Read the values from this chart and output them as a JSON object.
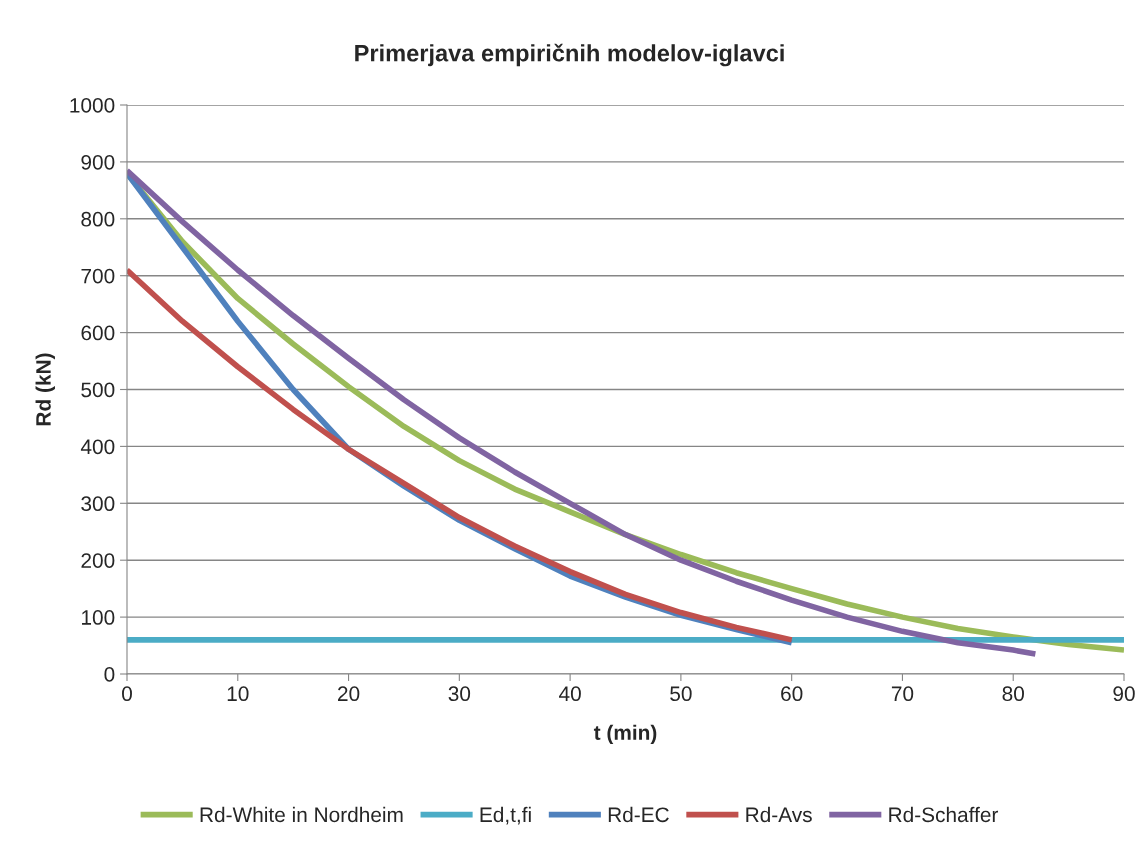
{
  "chart_data": {
    "type": "line",
    "title": "Primerjava empiričnih modelov-iglavci",
    "xlabel": "t (min)",
    "ylabel": "Rd (kN)",
    "xlim": [
      0,
      90
    ],
    "xticks": [
      0,
      10,
      20,
      30,
      40,
      50,
      60,
      70,
      80,
      90
    ],
    "ylim": [
      0,
      1000
    ],
    "yticks": [
      0,
      100,
      200,
      300,
      400,
      500,
      600,
      700,
      800,
      900,
      1000
    ],
    "grid": "y",
    "legend": "bottom",
    "marker": "none",
    "line_style": "solid",
    "series": [
      {
        "name": "Rd-White in Nordheim",
        "color": "#9bbb59",
        "x": [
          0,
          5,
          10,
          15,
          20,
          25,
          30,
          35,
          40,
          45,
          50,
          55,
          60,
          65,
          70,
          75,
          80,
          85,
          90
        ],
        "values": [
          880,
          760,
          660,
          580,
          505,
          435,
          375,
          325,
          285,
          245,
          210,
          178,
          150,
          123,
          100,
          80,
          65,
          52,
          42
        ]
      },
      {
        "name": "Ed,t,fi",
        "color": "#4bacc6",
        "x": [
          0,
          90
        ],
        "values": [
          60,
          60
        ]
      },
      {
        "name": "Rd-EC",
        "color": "#4f81bd",
        "x": [
          0,
          5,
          10,
          15,
          20,
          25,
          30,
          35,
          40,
          45,
          50,
          55,
          60
        ],
        "values": [
          880,
          750,
          620,
          500,
          395,
          330,
          270,
          220,
          172,
          135,
          103,
          78,
          55
        ]
      },
      {
        "name": "Rd-Avs",
        "color": "#c0504d",
        "x": [
          0,
          5,
          10,
          15,
          20,
          25,
          30,
          35,
          40,
          45,
          50,
          55,
          60
        ],
        "values": [
          710,
          620,
          540,
          465,
          395,
          335,
          275,
          225,
          180,
          140,
          108,
          82,
          60
        ]
      },
      {
        "name": "Rd-Schaffer",
        "color": "#8064a2",
        "x": [
          0,
          5,
          10,
          15,
          20,
          25,
          30,
          35,
          40,
          45,
          50,
          55,
          60,
          65,
          70,
          75,
          80,
          82
        ],
        "values": [
          885,
          795,
          710,
          630,
          555,
          482,
          415,
          355,
          300,
          245,
          200,
          163,
          130,
          100,
          75,
          55,
          42,
          35
        ]
      }
    ]
  }
}
